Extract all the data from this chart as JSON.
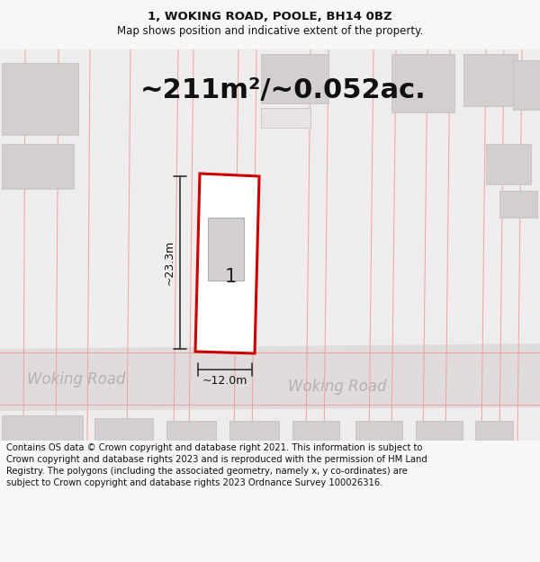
{
  "title_line1": "1, WOKING ROAD, POOLE, BH14 0BZ",
  "title_line2": "Map shows position and indicative extent of the property.",
  "area_text": "~211m²/~0.052ac.",
  "label_number": "1",
  "dim_width": "~12.0m",
  "dim_height": "~23.3m",
  "road_label1": "Woking Road",
  "road_label2": "Woking Road",
  "footer_text": "Contains OS data © Crown copyright and database right 2021. This information is subject to Crown copyright and database rights 2023 and is reproduced with the permission of HM Land Registry. The polygons (including the associated geometry, namely x, y co-ordinates) are subject to Crown copyright and database rights 2023 Ordnance Survey 100026316.",
  "bg_color": "#f7f7f7",
  "map_bg": "#eeecec",
  "building_gray": "#d3cfcf",
  "building_light": "#e8e4e4",
  "plot_fill": "#ffffff",
  "plot_border": "#cc0000",
  "dim_line_color": "#333333",
  "faint_line_color": "#f0a0a0",
  "road_stripe": "#e0dcdc",
  "title_fontsize": 9.5,
  "subtitle_fontsize": 8.5,
  "area_fontsize": 22,
  "footer_fontsize": 7.2,
  "road_label_fontsize": 12,
  "number_fontsize": 15
}
